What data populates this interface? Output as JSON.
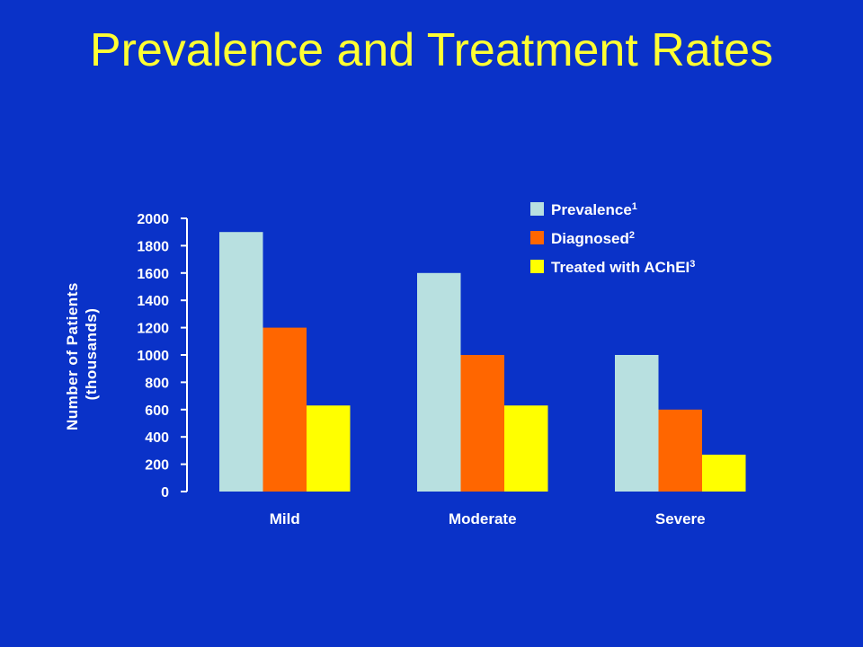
{
  "slide": {
    "title": "Prevalence and Treatment Rates"
  },
  "chart_data": {
    "type": "bar",
    "title": "",
    "ylabel": [
      "Number of Patients",
      "(thousands)"
    ],
    "xlabel": "",
    "categories": [
      "Mild",
      "Moderate",
      "Severe"
    ],
    "ylim": [
      0,
      2000
    ],
    "yticks": [
      0,
      200,
      400,
      600,
      800,
      1000,
      1200,
      1400,
      1600,
      1800,
      2000
    ],
    "grid": false,
    "legend_position": "top-right",
    "series": [
      {
        "name": "Prevalence",
        "superscript": "1",
        "color": "#b8e0e0",
        "values": [
          1900,
          1600,
          1000
        ]
      },
      {
        "name": "Diagnosed",
        "superscript": "2",
        "color": "#ff6600",
        "values": [
          1200,
          1000,
          600
        ]
      },
      {
        "name": "Treated with AChEI",
        "superscript": "3",
        "color": "#ffff00",
        "values": [
          630,
          630,
          270
        ]
      }
    ]
  }
}
